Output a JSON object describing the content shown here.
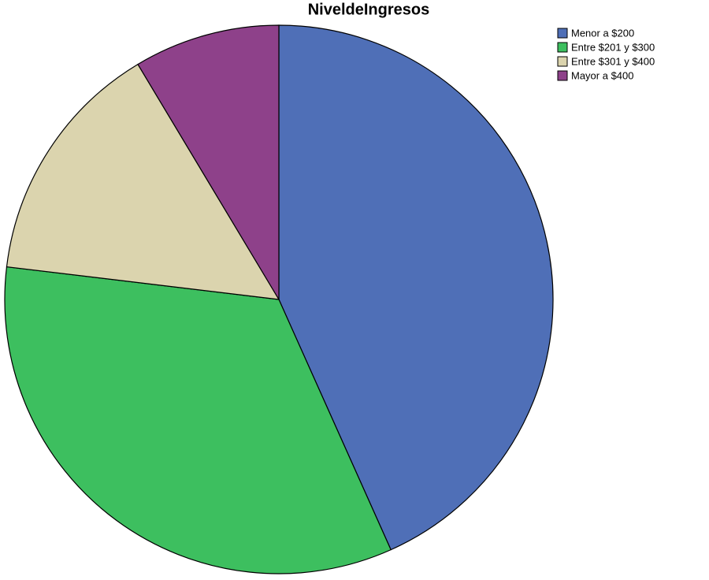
{
  "chart_data": {
    "type": "pie",
    "title": "NiveldeIngresos",
    "categories": [
      "Menor a $200",
      "Entre $201 y $300",
      "Entre $301 y $400",
      "Mayor a $400"
    ],
    "values": [
      43.3,
      33.6,
      14.5,
      8.6
    ],
    "colors": [
      "#4f6fb7",
      "#3dbf5f",
      "#dbd4ae",
      "#8e418a"
    ],
    "legend": "top-right"
  }
}
